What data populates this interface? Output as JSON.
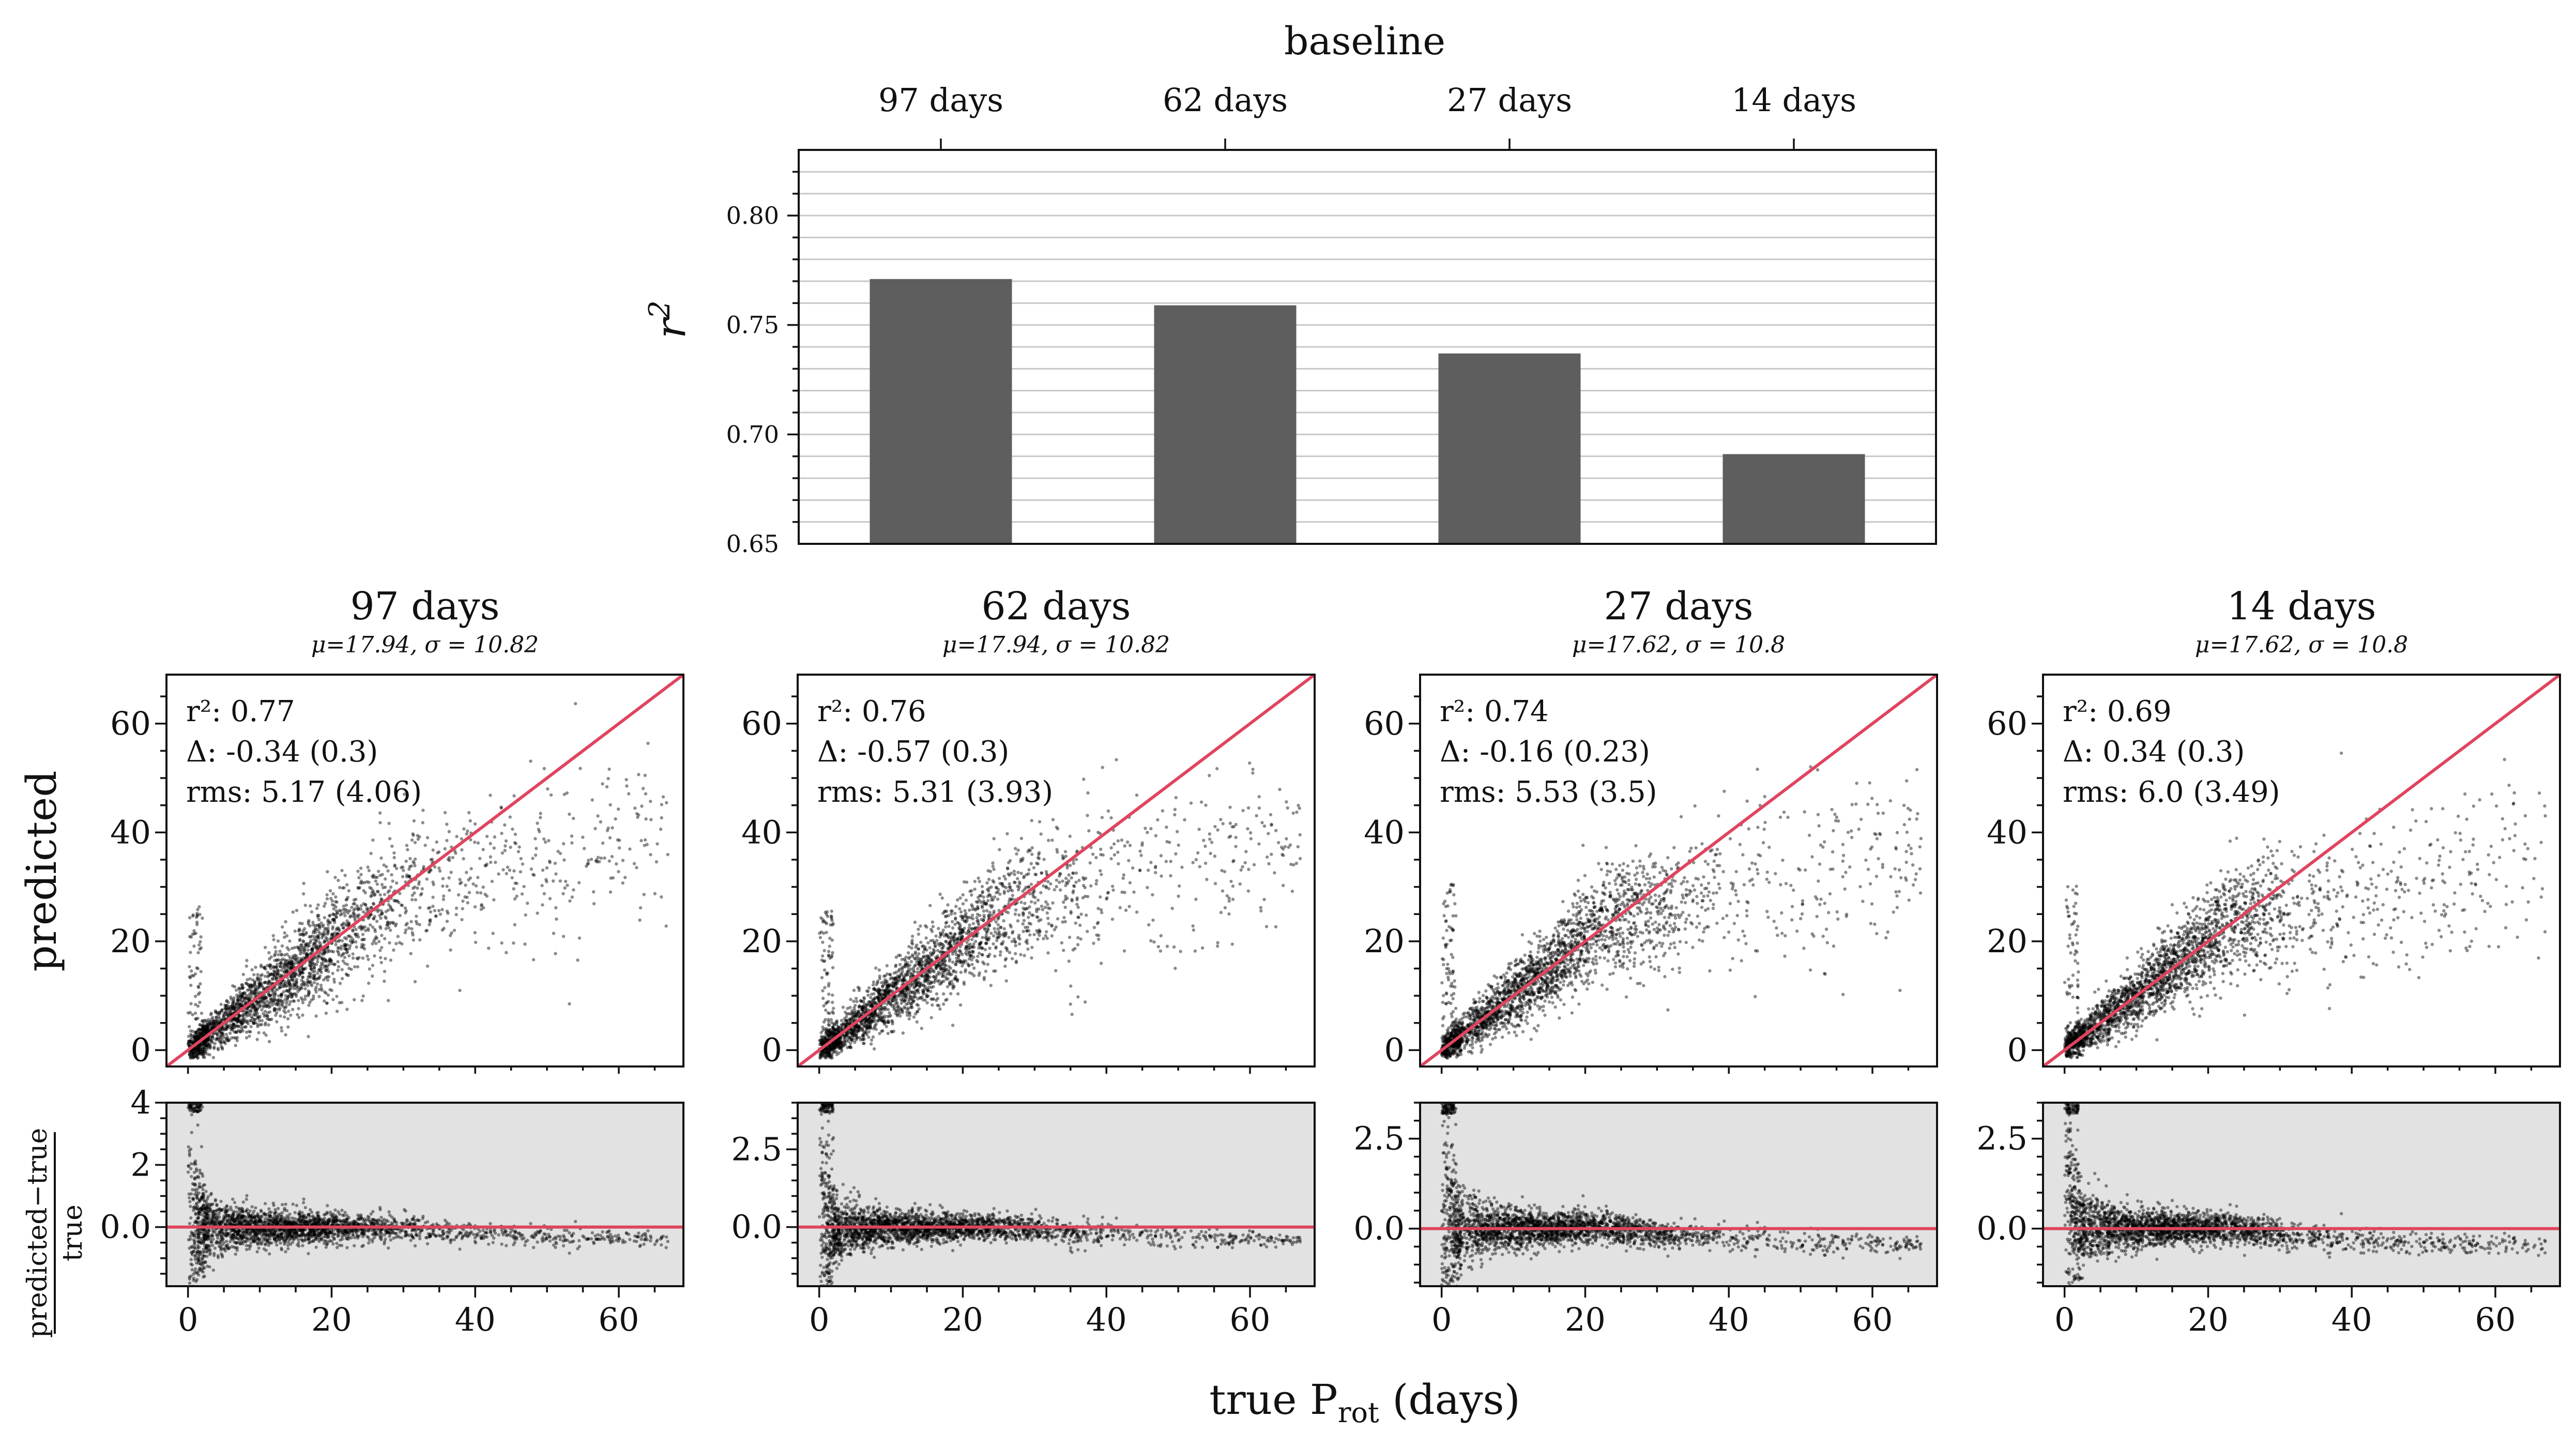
{
  "chart_data": [
    {
      "type": "bar",
      "name": "r2-by-baseline",
      "title": "baseline",
      "categories": [
        "97 days",
        "62 days",
        "27 days",
        "14 days"
      ],
      "values": [
        0.771,
        0.759,
        0.737,
        0.691
      ],
      "ylabel": "r²",
      "ylim": [
        0.65,
        0.83
      ],
      "yticks": [
        "0.65",
        "0.70",
        "0.75",
        "0.80"
      ],
      "grid": true,
      "bar_color": "#5e5e5e"
    },
    {
      "type": "scatter",
      "name": "panel-97-days",
      "title": "97 days",
      "subtitle": "μ=17.94, σ = 10.82",
      "annotations": [
        "r²: 0.77",
        "Δ: -0.34 (0.3)",
        "rms: 5.17 (4.06)"
      ],
      "r2": 0.77,
      "delta": -0.34,
      "delta_err": 0.3,
      "rms": 5.17,
      "rms_err": 4.06,
      "xlim": [
        -3,
        69
      ],
      "ylim": [
        -3,
        69
      ],
      "max_pred": 42,
      "tail": 5,
      "residual_ylim": [
        -1.9,
        4.0
      ],
      "residual_yticks": [
        "0.0",
        "2",
        "4"
      ],
      "line_color": "#e0445e"
    },
    {
      "type": "scatter",
      "name": "panel-62-days",
      "title": "62 days",
      "subtitle": "μ=17.94, σ = 10.82",
      "annotations": [
        "r²: 0.76",
        "Δ: -0.57 (0.3)",
        "rms: 5.31 (3.93)"
      ],
      "r2": 0.76,
      "delta": -0.57,
      "delta_err": 0.3,
      "rms": 5.31,
      "rms_err": 3.93,
      "xlim": [
        -3,
        69
      ],
      "ylim": [
        -3,
        69
      ],
      "max_pred": 40,
      "tail": 5,
      "residual_ylim": [
        -1.9,
        4.0
      ],
      "residual_yticks": [
        "0.0",
        "2.5"
      ],
      "line_color": "#e0445e"
    },
    {
      "type": "scatter",
      "name": "panel-27-days",
      "title": "27 days",
      "subtitle": "μ=17.62, σ = 10.8",
      "annotations": [
        "r²: 0.74",
        "Δ: -0.16 (0.23)",
        "rms: 5.53 (3.5)"
      ],
      "r2": 0.74,
      "delta": -0.16,
      "delta_err": 0.23,
      "rms": 5.53,
      "rms_err": 3.5,
      "xlim": [
        -3,
        69
      ],
      "ylim": [
        -3,
        69
      ],
      "max_pred": 35,
      "tail": 6,
      "residual_ylim": [
        -1.6,
        3.5
      ],
      "residual_yticks": [
        "0.0",
        "2.5"
      ],
      "line_color": "#e0445e"
    },
    {
      "type": "scatter",
      "name": "panel-14-days",
      "title": "14 days",
      "subtitle": "μ=17.62, σ = 10.8",
      "annotations": [
        "r²: 0.69",
        "Δ: 0.34 (0.3)",
        "rms: 6.0 (3.49)"
      ],
      "r2": 0.69,
      "delta": 0.34,
      "delta_err": 0.3,
      "rms": 6.0,
      "rms_err": 3.49,
      "xlim": [
        -3,
        69
      ],
      "ylim": [
        -3,
        69
      ],
      "max_pred": 33,
      "tail": 6,
      "residual_ylim": [
        -1.6,
        3.5
      ],
      "residual_yticks": [
        "0.0",
        "2.5"
      ],
      "line_color": "#e0445e"
    }
  ],
  "shared": {
    "scatter_yticks": [
      "0",
      "20",
      "40",
      "60"
    ],
    "scatter_xticks": [
      "0",
      "20",
      "40",
      "60"
    ],
    "ylabel_top": "predicted",
    "ylabel_bottom_num": "predicted−true",
    "ylabel_bottom_den": "true",
    "xlabel": "true P",
    "xlabel_sub": "rot",
    "xlabel_unit": " (days)"
  }
}
